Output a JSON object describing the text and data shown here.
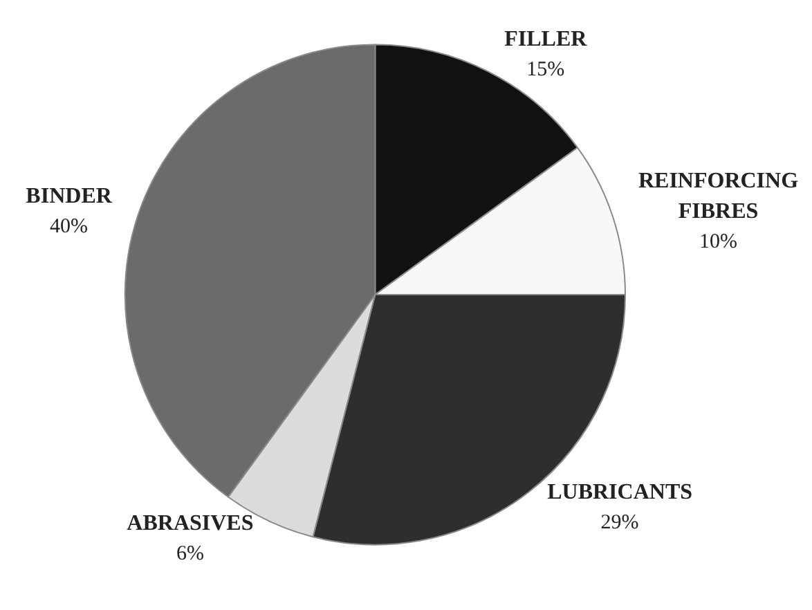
{
  "chart_data": {
    "type": "pie",
    "categories": [
      "FILLER",
      "REINFORCING FIBRES",
      "LUBRICANTS",
      "ABRASIVES",
      "BINDER"
    ],
    "values": [
      15,
      10,
      29,
      6,
      40
    ],
    "colors": [
      "#111111",
      "#f8f8f8",
      "#2e2e2e",
      "#dcdcdc",
      "#6b6b6b"
    ],
    "value_labels": [
      "15%",
      "10%",
      "29%",
      "6%",
      "40%"
    ]
  }
}
